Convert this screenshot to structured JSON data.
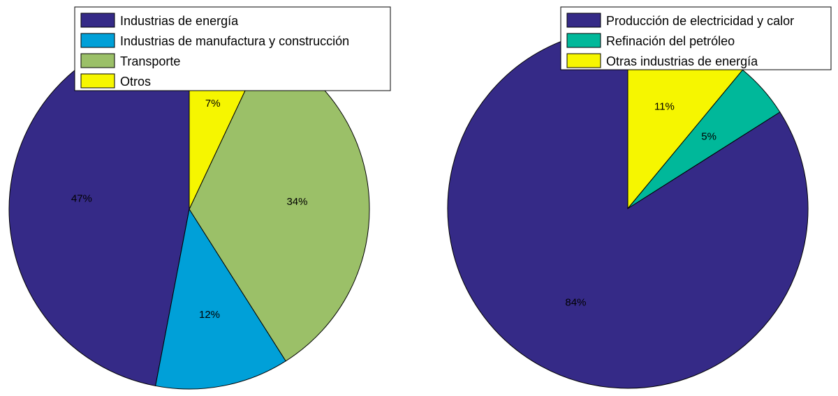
{
  "chart_data": [
    {
      "type": "pie",
      "title": "",
      "slices": [
        {
          "label": "Industrias de energía",
          "value": 47,
          "text": "47%",
          "color": "#352a87"
        },
        {
          "label": "Industrias de manufactura y construcción",
          "value": 12,
          "text": "12%",
          "color": "#00a0d8"
        },
        {
          "label": "Transporte",
          "value": 34,
          "text": "34%",
          "color": "#9bc068"
        },
        {
          "label": "Otros",
          "value": 7,
          "text": "7%",
          "color": "#f6f600"
        }
      ],
      "start": "12 o'clock",
      "direction": "counterclockwise",
      "legend_position": "top"
    },
    {
      "type": "pie",
      "title": "",
      "slices": [
        {
          "label": "Producción de electricidad y calor",
          "value": 84,
          "text": "84%",
          "color": "#352a87"
        },
        {
          "label": "Refinación del petróleo",
          "value": 5,
          "text": "5%",
          "color": "#00b89a"
        },
        {
          "label": "Otras industrias de energía",
          "value": 11,
          "text": "11%",
          "color": "#f6f600"
        }
      ],
      "start": "12 o'clock",
      "direction": "counterclockwise",
      "legend_position": "top-right"
    }
  ]
}
